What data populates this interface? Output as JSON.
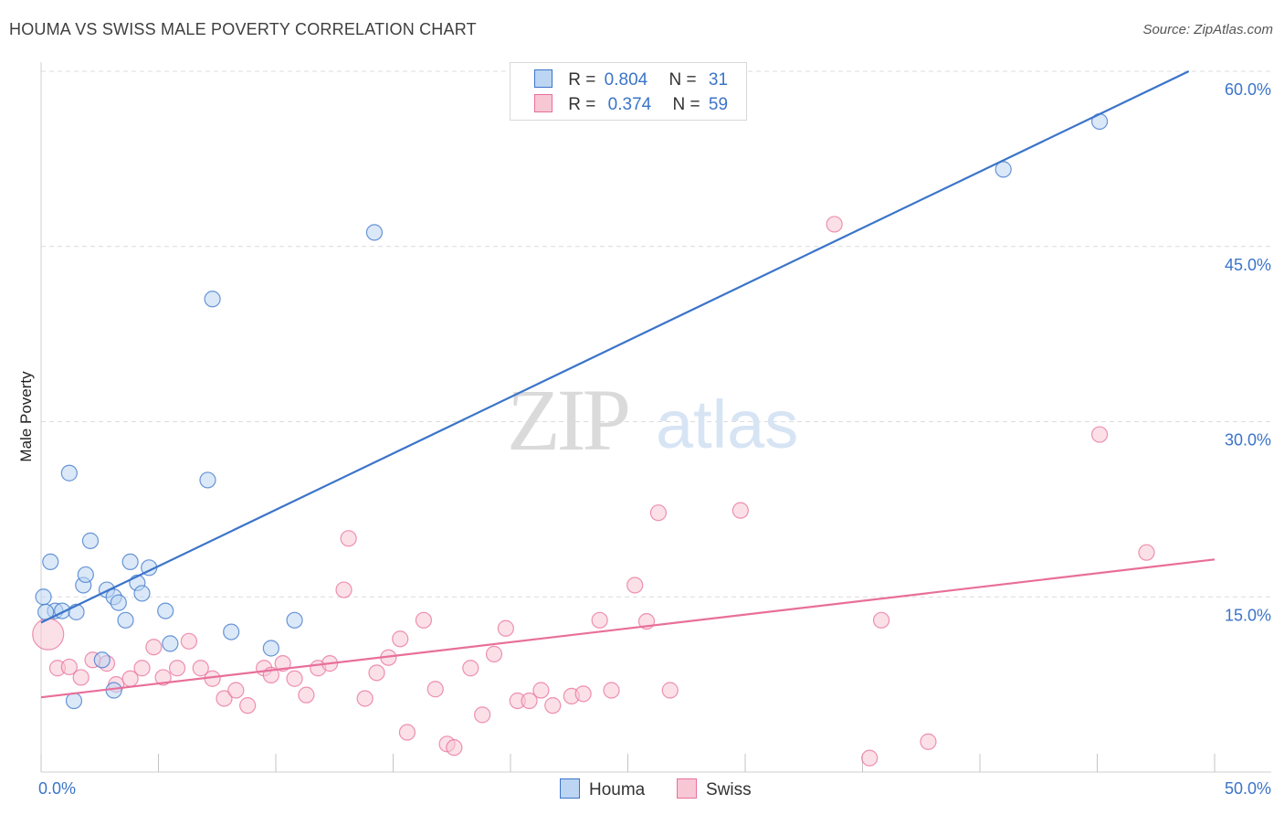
{
  "title": "HOUMA VS SWISS MALE POVERTY CORRELATION CHART",
  "source": "Source: ZipAtlas.com",
  "watermark": {
    "zip": "ZIP",
    "atlas": "atlas"
  },
  "legend": {
    "houma": {
      "r_label": "R =",
      "r_value": "0.804",
      "n_label": "N =",
      "n_value": "31"
    },
    "swiss": {
      "r_label": "R =",
      "r_value": "0.374",
      "n_label": "N =",
      "n_value": "59"
    }
  },
  "bottom_legend": {
    "houma": "Houma",
    "swiss": "Swiss"
  },
  "chart_data": {
    "type": "scatter",
    "title": "HOUMA VS SWISS MALE POVERTY CORRELATION CHART",
    "xlabel": "",
    "ylabel": "Male Poverty",
    "xlim": [
      0,
      50
    ],
    "ylim": [
      0,
      60
    ],
    "x_tick_labels": [
      "0.0%",
      "50.0%"
    ],
    "y_ticks": [
      15,
      30,
      45,
      60
    ],
    "y_tick_labels": [
      "15.0%",
      "30.0%",
      "45.0%",
      "60.0%"
    ],
    "colors": {
      "houma": "#3b74c9",
      "houma_fill": "#bcd5f2",
      "swiss": "#e86f9a",
      "swiss_fill": "#f8c7d6"
    },
    "series": [
      {
        "name": "Houma",
        "r": 0.804,
        "n": 31,
        "trend": [
          [
            0,
            12.8
          ],
          [
            48.9,
            60
          ]
        ],
        "points": [
          [
            0.1,
            15.0
          ],
          [
            0.4,
            18.0
          ],
          [
            0.6,
            13.8
          ],
          [
            0.9,
            13.8
          ],
          [
            1.2,
            25.6
          ],
          [
            1.4,
            6.1
          ],
          [
            1.5,
            13.7
          ],
          [
            1.8,
            16.0
          ],
          [
            1.9,
            16.9
          ],
          [
            2.1,
            19.8
          ],
          [
            2.6,
            9.6
          ],
          [
            2.8,
            15.6
          ],
          [
            3.1,
            7.0
          ],
          [
            3.1,
            15.0
          ],
          [
            3.3,
            14.5
          ],
          [
            3.6,
            13.0
          ],
          [
            3.8,
            18.0
          ],
          [
            4.1,
            16.2
          ],
          [
            4.3,
            15.3
          ],
          [
            4.6,
            17.5
          ],
          [
            5.3,
            13.8
          ],
          [
            5.5,
            11.0
          ],
          [
            7.1,
            25.0
          ],
          [
            7.3,
            40.5
          ],
          [
            8.1,
            12.0
          ],
          [
            9.8,
            10.6
          ],
          [
            10.8,
            13.0
          ],
          [
            14.2,
            46.2
          ],
          [
            41.0,
            51.6
          ],
          [
            45.1,
            55.7
          ],
          [
            0.2,
            13.7
          ]
        ]
      },
      {
        "name": "Swiss",
        "r": 0.374,
        "n": 59,
        "trend": [
          [
            0,
            6.4
          ],
          [
            50,
            18.2
          ]
        ],
        "points": [
          [
            0.3,
            11.8
          ],
          [
            0.7,
            8.9
          ],
          [
            1.2,
            9.0
          ],
          [
            1.7,
            8.1
          ],
          [
            2.2,
            9.6
          ],
          [
            2.8,
            9.3
          ],
          [
            3.2,
            7.5
          ],
          [
            3.8,
            8.0
          ],
          [
            4.3,
            8.9
          ],
          [
            4.8,
            10.7
          ],
          [
            5.2,
            8.1
          ],
          [
            5.8,
            8.9
          ],
          [
            6.3,
            11.2
          ],
          [
            6.8,
            8.9
          ],
          [
            7.3,
            8.0
          ],
          [
            7.8,
            6.3
          ],
          [
            8.3,
            7.0
          ],
          [
            8.8,
            5.7
          ],
          [
            9.5,
            8.9
          ],
          [
            9.8,
            8.3
          ],
          [
            10.3,
            9.3
          ],
          [
            10.8,
            8.0
          ],
          [
            11.3,
            6.6
          ],
          [
            11.8,
            8.9
          ],
          [
            12.3,
            9.3
          ],
          [
            12.9,
            15.6
          ],
          [
            13.1,
            20.0
          ],
          [
            13.8,
            6.3
          ],
          [
            14.3,
            8.5
          ],
          [
            14.8,
            9.8
          ],
          [
            15.3,
            11.4
          ],
          [
            15.6,
            3.4
          ],
          [
            16.3,
            13.0
          ],
          [
            16.8,
            7.1
          ],
          [
            17.3,
            2.4
          ],
          [
            17.6,
            2.1
          ],
          [
            18.3,
            8.9
          ],
          [
            18.8,
            4.9
          ],
          [
            19.3,
            10.1
          ],
          [
            19.8,
            12.3
          ],
          [
            20.3,
            6.1
          ],
          [
            20.8,
            6.1
          ],
          [
            21.3,
            7.0
          ],
          [
            21.8,
            5.7
          ],
          [
            22.6,
            6.5
          ],
          [
            23.1,
            6.7
          ],
          [
            23.8,
            13.0
          ],
          [
            24.3,
            7.0
          ],
          [
            25.3,
            16.0
          ],
          [
            25.8,
            12.9
          ],
          [
            26.3,
            22.2
          ],
          [
            26.8,
            7.0
          ],
          [
            29.8,
            22.4
          ],
          [
            33.8,
            46.9
          ],
          [
            35.3,
            1.2
          ],
          [
            35.8,
            13.0
          ],
          [
            37.8,
            2.6
          ],
          [
            45.1,
            28.9
          ],
          [
            47.1,
            18.8
          ]
        ]
      }
    ]
  }
}
